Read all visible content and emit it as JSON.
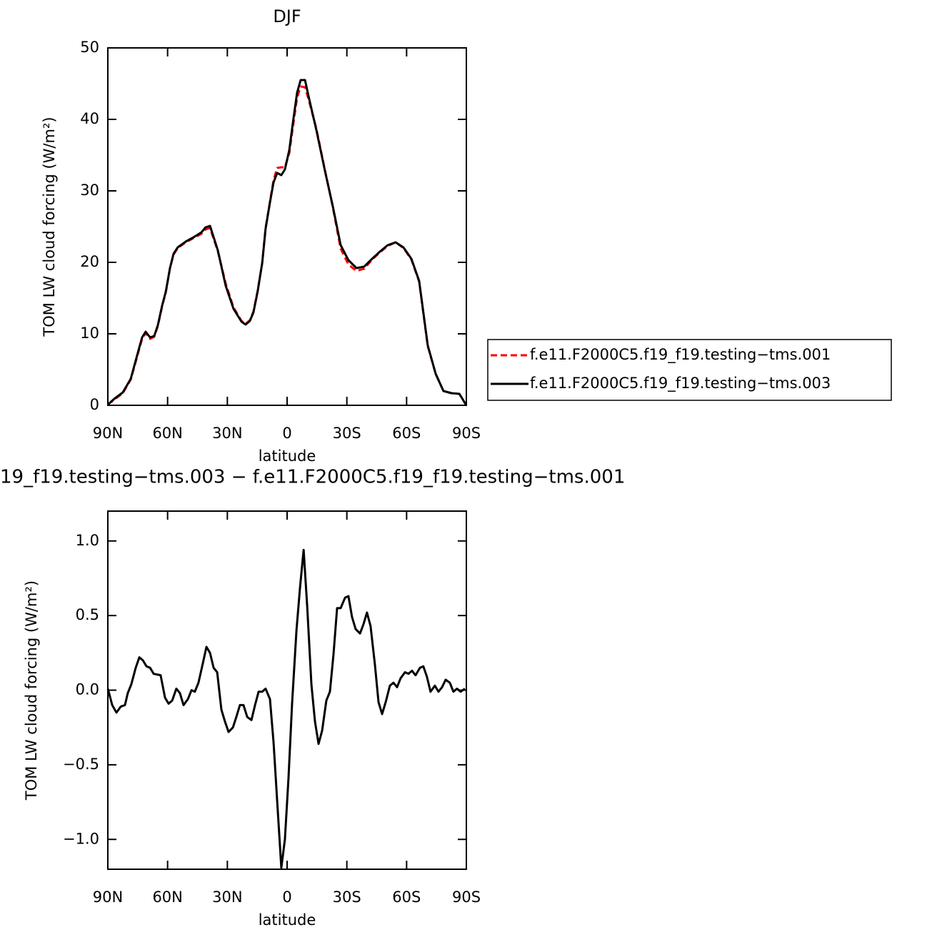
{
  "chart_data": [
    {
      "type": "line",
      "title": "DJF",
      "ylabel": "TOM LW cloud forcing (W/m²)",
      "xlabel": "latitude",
      "x": [
        90,
        86.8,
        82.5,
        78.5,
        74.6,
        72.8,
        71.0,
        68.8,
        66.7,
        64.9,
        62.7,
        60.9,
        58.8,
        57.0,
        54.9,
        50.9,
        47.0,
        43.0,
        40.9,
        38.7,
        34.8,
        30.8,
        26.9,
        22.9,
        20.8,
        18.7,
        16.9,
        14.8,
        12.5,
        10.8,
        8.6,
        6.8,
        5.0,
        2.9,
        1.1,
        -1.1,
        -2.9,
        -5.0,
        -6.8,
        -9.0,
        -10.8,
        -14.7,
        -19.0,
        -22.9,
        -26.9,
        -30.8,
        -34.8,
        -38.7,
        -42.7,
        -46.6,
        -50.5,
        -54.5,
        -58.4,
        -62.4,
        -66.3,
        -70.6,
        -74.6,
        -78.5,
        -82.5,
        -86.5,
        -90
      ],
      "series": [
        {
          "name": "f.e11.F2000C5.f19_f19.testing−tms.001",
          "color": "#ff0000",
          "linestyle": "dashed",
          "values": [
            0.1,
            0.8,
            1.7,
            3.6,
            7.5,
            9.3,
            10.1,
            9.3,
            9.6,
            11.1,
            13.9,
            15.8,
            19.2,
            21.1,
            22.0,
            22.8,
            23.4,
            24.0,
            24.6,
            24.8,
            21.6,
            17.0,
            13.7,
            11.8,
            11.4,
            11.9,
            13.1,
            16.0,
            19.9,
            24.8,
            28.5,
            31.5,
            33.2,
            33.3,
            33.3,
            35.3,
            38.9,
            43.0,
            44.6,
            44.5,
            42.8,
            38.7,
            32.9,
            27.8,
            21.9,
            19.7,
            18.8,
            19.1,
            20.4,
            21.4,
            22.3,
            22.8,
            22.0,
            20.4,
            17.3,
            8.3,
            4.4,
            2.0,
            1.7,
            1.6,
            0
          ]
        },
        {
          "name": "f.e11.F2000C5.f19_f19.testing−tms.003",
          "color": "#000000",
          "linestyle": "solid",
          "values": [
            0.1,
            0.9,
            1.8,
            3.7,
            7.7,
            9.5,
            10.3,
            9.5,
            9.7,
            11.2,
            14.0,
            15.9,
            19.2,
            21.2,
            22.1,
            22.9,
            23.5,
            24.2,
            24.9,
            25.1,
            21.7,
            16.7,
            13.5,
            11.7,
            11.3,
            11.8,
            13.0,
            15.9,
            19.9,
            24.7,
            28.4,
            31.2,
            32.5,
            32.2,
            33.0,
            35.7,
            39.5,
            43.7,
            45.5,
            45.5,
            43.2,
            38.5,
            32.8,
            27.9,
            22.4,
            20.3,
            19.2,
            19.4,
            20.5,
            21.5,
            22.4,
            22.8,
            22.1,
            20.5,
            17.4,
            8.4,
            4.4,
            2.0,
            1.7,
            1.6,
            0
          ]
        }
      ],
      "xlim": [
        90,
        -90
      ],
      "xticks": [
        {
          "value": 90,
          "label": "90N"
        },
        {
          "value": 60,
          "label": "60N"
        },
        {
          "value": 30,
          "label": "30N"
        },
        0,
        {
          "value": -30,
          "label": "30S"
        },
        {
          "value": -60,
          "label": "60S"
        },
        {
          "value": -90,
          "label": "90S"
        }
      ],
      "ylim": [
        0,
        50
      ],
      "yticks": [
        0,
        10,
        20,
        30,
        40,
        50
      ],
      "legend": "right"
    },
    {
      "type": "line",
      "title": "19_f19.testing−tms.003 − f.e11.F2000C5.f19_f19.testing−tms.001",
      "ylabel": "TOM LW cloud forcing (W/m²)",
      "xlabel": "latitude",
      "x": [
        90,
        87.8,
        85.7,
        83.5,
        81.4,
        80,
        78.2,
        76,
        74.2,
        72.4,
        70.6,
        68.8,
        67,
        63.5,
        61.3,
        59.5,
        57.7,
        55.6,
        53.8,
        52,
        49.8,
        48,
        46.3,
        44.5,
        42.3,
        40.5,
        38.7,
        36.9,
        35.1,
        33,
        31.2,
        29.4,
        27.2,
        25.5,
        23.7,
        21.9,
        20.0,
        17.9,
        16.1,
        14.3,
        12.5,
        10.8,
        8.6,
        6.8,
        5.0,
        2.9,
        1.1,
        -0.7,
        -2.5,
        -4.7,
        -6.5,
        -8.3,
        -10.1,
        -12.2,
        -14.0,
        -15.8,
        -17.6,
        -19.7,
        -21.5,
        -23.3,
        -25.1,
        -26.9,
        -29.1,
        -30.8,
        -32.6,
        -34.4,
        -36.6,
        -38.3,
        -40.1,
        -41.9,
        -44.1,
        -45.9,
        -47.7,
        -49.5,
        -51.6,
        -53.4,
        -55.2,
        -57.0,
        -59.2,
        -60.9,
        -62.7,
        -64.5,
        -66.7,
        -68.4,
        -70.2,
        -72.0,
        -74.2,
        -76.0,
        -77.8,
        -79.6,
        -81.7,
        -83.5,
        -85.3,
        -87.1,
        -89.3
      ],
      "series": [
        {
          "color": "#000000",
          "linestyle": "solid",
          "values": [
            0.01,
            -0.1,
            -0.15,
            -0.11,
            -0.1,
            -0.02,
            0.04,
            0.15,
            0.22,
            0.2,
            0.16,
            0.15,
            0.11,
            0.1,
            -0.05,
            -0.09,
            -0.07,
            0.01,
            -0.02,
            -0.1,
            -0.06,
            0.0,
            -0.01,
            0.05,
            0.18,
            0.29,
            0.25,
            0.15,
            0.12,
            -0.13,
            -0.21,
            -0.28,
            -0.25,
            -0.18,
            -0.1,
            -0.1,
            -0.18,
            -0.2,
            -0.1,
            -0.01,
            -0.01,
            0.01,
            -0.06,
            -0.35,
            -0.74,
            -1.19,
            -1.0,
            -0.59,
            -0.09,
            0.4,
            0.69,
            0.94,
            0.56,
            0.04,
            -0.21,
            -0.36,
            -0.27,
            -0.07,
            -0.01,
            0.24,
            0.55,
            0.55,
            0.62,
            0.63,
            0.49,
            0.41,
            0.38,
            0.44,
            0.52,
            0.43,
            0.17,
            -0.08,
            -0.16,
            -0.08,
            0.03,
            0.05,
            0.02,
            0.08,
            0.12,
            0.11,
            0.13,
            0.1,
            0.15,
            0.16,
            0.09,
            -0.01,
            0.03,
            -0.01,
            0.02,
            0.07,
            0.05,
            -0.01,
            0.01,
            -0.01,
            0.01
          ]
        }
      ],
      "xlim": [
        90,
        -90
      ],
      "xticks": [
        {
          "value": 90,
          "label": "90N"
        },
        {
          "value": 60,
          "label": "60N"
        },
        {
          "value": 30,
          "label": "30N"
        },
        0,
        {
          "value": -30,
          "label": "30S"
        },
        {
          "value": -60,
          "label": "60S"
        },
        {
          "value": -90,
          "label": "90S"
        }
      ],
      "ylim": [
        -1.2,
        1.2
      ],
      "yticks": [
        {
          "value": -1,
          "label": "−1.0"
        },
        {
          "value": -0.5,
          "label": "−0.5"
        },
        {
          "value": 0,
          "label": "0.0"
        },
        0.5,
        {
          "value": 1,
          "label": "1.0"
        }
      ]
    }
  ]
}
